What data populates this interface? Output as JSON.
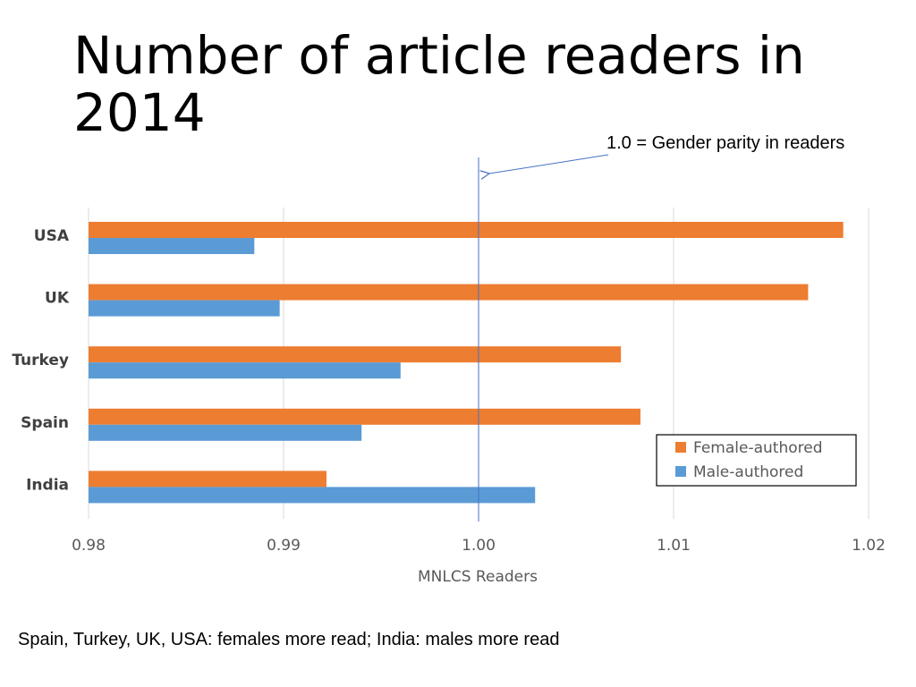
{
  "slide": {
    "title": "Number of article readers in 2014",
    "annotation": "1.0 = Gender parity in readers",
    "footer": "Spain, Turkey, UK, USA: females more read; India: males more read"
  },
  "colors": {
    "female": "#ED7D31",
    "male": "#5B9BD5",
    "grid": "#D9D9D9",
    "reference_line": "#4472C4"
  },
  "chart_data": {
    "type": "bar",
    "orientation": "horizontal",
    "categories": [
      "USA",
      "UK",
      "Turkey",
      "Spain",
      "India"
    ],
    "series": [
      {
        "name": "Female-authored",
        "values": [
          1.0187,
          1.0169,
          1.0073,
          1.0083,
          0.9922
        ]
      },
      {
        "name": "Male-authored",
        "values": [
          0.9885,
          0.9898,
          0.996,
          0.994,
          1.0029
        ]
      }
    ],
    "xlabel": "MNLCS Readers",
    "ylabel": "",
    "xlim": [
      0.98,
      1.02
    ],
    "xticks": [
      "0.98",
      "0.99",
      "1.00",
      "1.01",
      "1.02"
    ],
    "reference_line_x": 1.0,
    "grid": true,
    "legend_position": "bottom-right"
  }
}
